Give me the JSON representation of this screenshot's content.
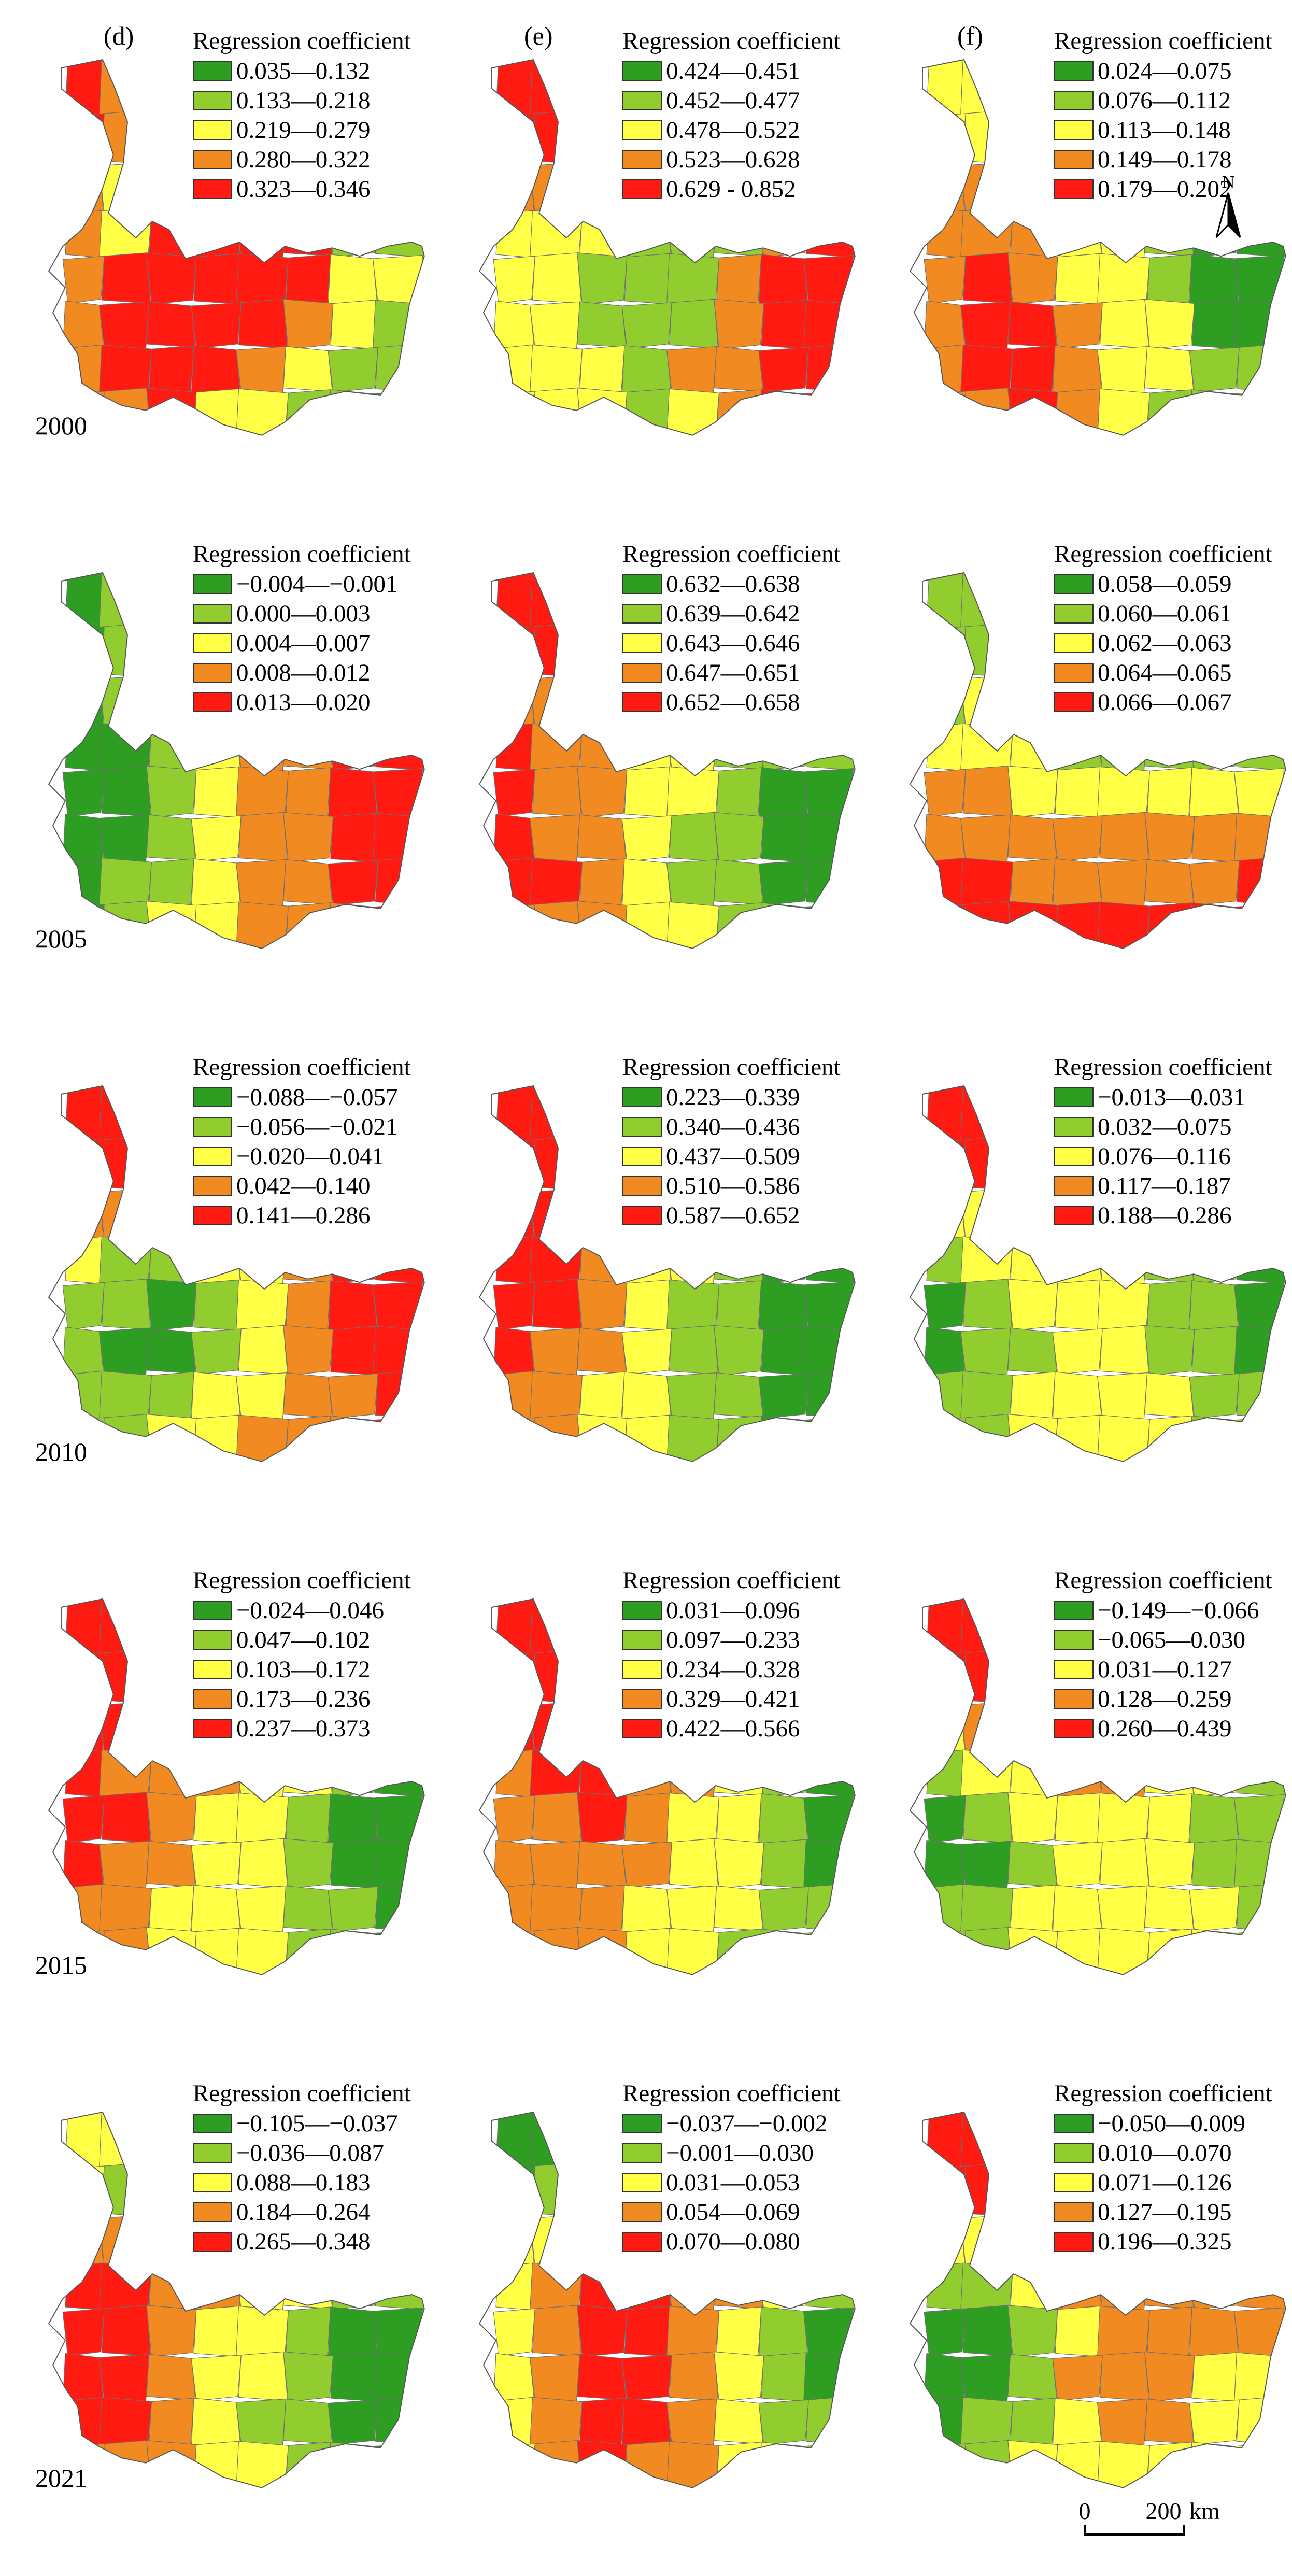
{
  "columns": [
    "(d)",
    "(e)",
    "(f)"
  ],
  "colors": [
    "#2e9e23",
    "#92cd2f",
    "#ffff45",
    "#f28a22",
    "#ff1a12"
  ],
  "north_label": "N",
  "scale": {
    "zero": "0",
    "distance": "200",
    "unit": "km"
  },
  "rows": [
    {
      "year": "2000",
      "panels": [
        {
          "title": "Regression coefficient",
          "classes": [
            "0.035—0.132",
            "0.133—0.218",
            "0.219—0.279",
            "0.280—0.322",
            "0.323—0.346"
          ]
        },
        {
          "title": "Regression coefficient",
          "classes": [
            "0.424—0.451",
            "0.452—0.477",
            "0.478—0.522",
            "0.523—0.628",
            "0.629 - 0.852"
          ]
        },
        {
          "title": "Regression coefficient",
          "classes": [
            "0.024—0.075",
            "0.076—0.112",
            "0.113—0.148",
            "0.149—0.178",
            "0.179—0.202"
          ]
        }
      ]
    },
    {
      "year": "2005",
      "panels": [
        {
          "title": "Regression coefficient",
          "classes": [
            "−0.004—−0.001",
            "0.000—0.003",
            "0.004—0.007",
            "0.008—0.012",
            "0.013—0.020"
          ]
        },
        {
          "title": "Regression coefficient",
          "classes": [
            "0.632—0.638",
            "0.639—0.642",
            "0.643—0.646",
            "0.647—0.651",
            "0.652—0.658"
          ]
        },
        {
          "title": "Regression coefficient",
          "classes": [
            "0.058—0.059",
            "0.060—0.061",
            "0.062—0.063",
            "0.064—0.065",
            "0.066—0.067"
          ]
        }
      ]
    },
    {
      "year": "2010",
      "panels": [
        {
          "title": "Regression coefficient",
          "classes": [
            "−0.088—−0.057",
            "−0.056—−0.021",
            "−0.020—0.041",
            "0.042—0.140",
            "0.141—0.286"
          ]
        },
        {
          "title": "Regression coefficient",
          "classes": [
            "0.223—0.339",
            "0.340—0.436",
            "0.437—0.509",
            "0.510—0.586",
            "0.587—0.652"
          ]
        },
        {
          "title": "Regression coefficient",
          "classes": [
            "−0.013—0.031",
            "0.032—0.075",
            "0.076—0.116",
            "0.117—0.187",
            "0.188—0.286"
          ]
        }
      ]
    },
    {
      "year": "2015",
      "panels": [
        {
          "title": "Regression coefficient",
          "classes": [
            "−0.024—0.046",
            "0.047—0.102",
            "0.103—0.172",
            "0.173—0.236",
            "0.237—0.373"
          ]
        },
        {
          "title": "Regression coefficient",
          "classes": [
            "0.031—0.096",
            "0.097—0.233",
            "0.234—0.328",
            "0.329—0.421",
            "0.422—0.566"
          ]
        },
        {
          "title": "Regression coefficient",
          "classes": [
            "−0.149—−0.066",
            "−0.065—0.030",
            "0.031—0.127",
            "0.128—0.259",
            "0.260—0.439"
          ]
        }
      ]
    },
    {
      "year": "2021",
      "panels": [
        {
          "title": "Regression coefficient",
          "classes": [
            "−0.105—−0.037",
            "−0.036—0.087",
            "0.088—0.183",
            "0.184—0.264",
            "0.265—0.348"
          ]
        },
        {
          "title": "Regression coefficient",
          "classes": [
            "−0.037—−0.002",
            "−0.001—0.030",
            "0.031—0.053",
            "0.054—0.069",
            "0.070—0.080"
          ]
        },
        {
          "title": "Regression coefficient",
          "classes": [
            "−0.050—0.009",
            "0.010—0.070",
            "0.071—0.126",
            "0.127—0.195",
            "0.196—0.325"
          ]
        }
      ]
    }
  ]
}
